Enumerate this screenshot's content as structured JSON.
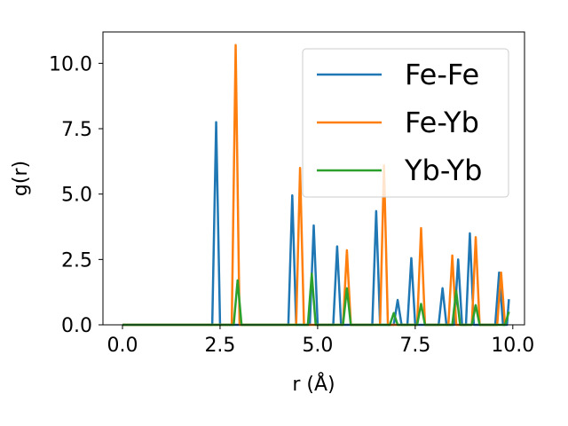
{
  "chart_data": {
    "type": "line",
    "xlabel": "r (Å)",
    "ylabel": "g(r)",
    "xlim": [
      -0.5,
      10.3
    ],
    "ylim": [
      0,
      11.2
    ],
    "xticks": [
      0.0,
      2.5,
      5.0,
      7.5,
      10.0
    ],
    "xtick_labels": [
      "0.0",
      "2.5",
      "5.0",
      "7.5",
      "10.0"
    ],
    "yticks": [
      0.0,
      2.5,
      5.0,
      7.5,
      10.0
    ],
    "ytick_labels": [
      "0.0",
      "2.5",
      "5.0",
      "7.5",
      "10.0"
    ],
    "grid": false,
    "legend_position": "upper-right",
    "series": [
      {
        "name": "Fe-Fe",
        "color": "#1f77b4",
        "x": [
          0.0,
          2.3,
          2.4,
          2.5,
          4.25,
          4.35,
          4.45,
          4.8,
          4.9,
          5.0,
          5.4,
          5.5,
          5.6,
          6.4,
          6.5,
          6.6,
          6.95,
          7.05,
          7.15,
          7.3,
          7.4,
          7.5,
          8.1,
          8.2,
          8.3,
          8.5,
          8.6,
          8.7,
          8.8,
          8.9,
          9.0,
          9.55,
          9.65,
          9.75,
          9.85,
          9.9
        ],
        "y": [
          0.0,
          0.0,
          7.75,
          0.0,
          0.0,
          4.95,
          0.0,
          0.0,
          3.8,
          0.0,
          0.0,
          3.0,
          0.0,
          0.0,
          4.35,
          0.0,
          0.0,
          0.95,
          0.0,
          0.0,
          2.55,
          0.0,
          0.0,
          1.4,
          0.0,
          0.0,
          2.5,
          0.0,
          0.0,
          3.5,
          0.0,
          0.0,
          2.0,
          0.0,
          0.0,
          0.98
        ]
      },
      {
        "name": "Fe-Yb",
        "color": "#ff7f0e",
        "x": [
          0.0,
          2.8,
          2.9,
          3.0,
          4.45,
          4.55,
          4.65,
          5.65,
          5.75,
          5.85,
          6.6,
          6.7,
          6.8,
          7.55,
          7.65,
          7.75,
          8.35,
          8.45,
          8.55,
          8.95,
          9.05,
          9.15,
          9.6,
          9.7,
          9.8
        ],
        "y": [
          0.0,
          0.0,
          10.7,
          0.0,
          0.0,
          6.0,
          0.0,
          0.0,
          2.85,
          0.0,
          0.0,
          6.1,
          0.0,
          0.0,
          3.7,
          0.0,
          0.0,
          2.65,
          0.0,
          0.0,
          3.35,
          0.0,
          0.0,
          2.0,
          0.0
        ]
      },
      {
        "name": "Yb-Yb",
        "color": "#2ca02c",
        "x": [
          0.0,
          2.85,
          2.95,
          3.05,
          4.75,
          4.85,
          4.95,
          5.65,
          5.75,
          5.85,
          6.85,
          6.95,
          7.05,
          7.55,
          7.65,
          7.75,
          8.45,
          8.55,
          8.65,
          8.95,
          9.05,
          9.15,
          9.7,
          9.8,
          9.9
        ],
        "y": [
          0.0,
          0.0,
          1.7,
          0.0,
          0.0,
          1.95,
          0.0,
          0.0,
          1.4,
          0.0,
          0.0,
          0.45,
          0.0,
          0.0,
          0.8,
          0.0,
          0.0,
          1.3,
          0.0,
          0.0,
          0.75,
          0.0,
          0.0,
          0.0,
          0.5
        ]
      }
    ]
  }
}
